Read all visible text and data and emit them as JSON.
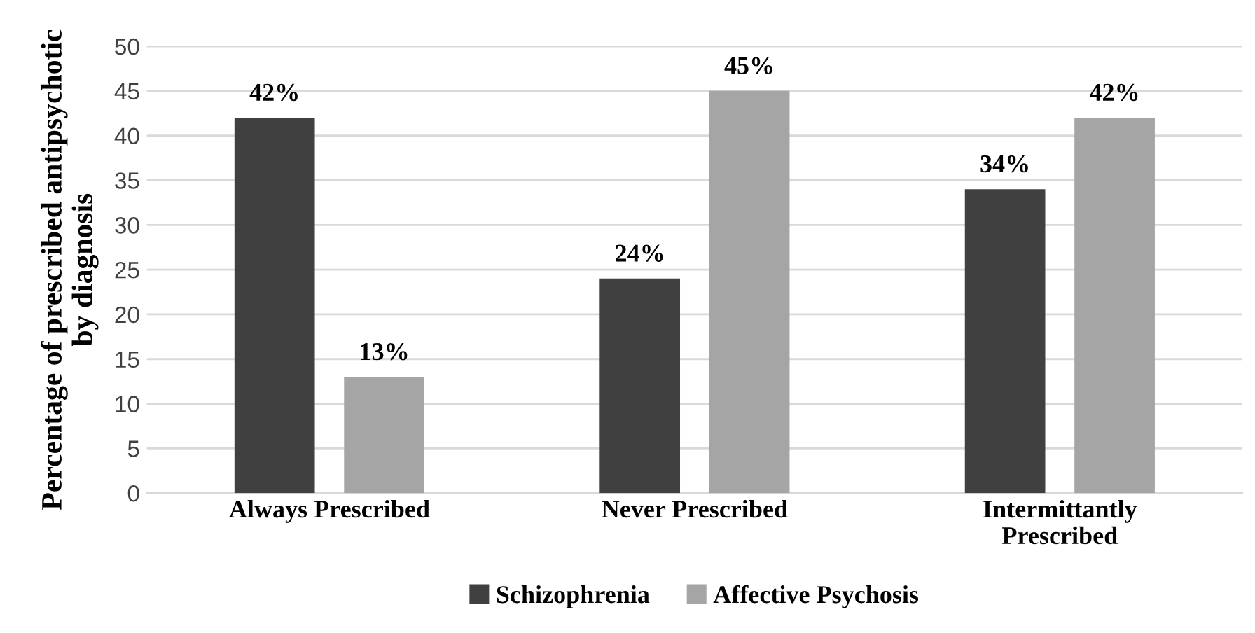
{
  "chart_data": {
    "type": "bar",
    "ylabel": "Percentage of prescribed antipsychotic\nby diagnosis",
    "categories": [
      "Always Prescribed",
      "Never Prescribed",
      "Intermittantly Prescribed"
    ],
    "series": [
      {
        "name": "Schizophrenia",
        "color": "#404040",
        "values": [
          42,
          24,
          34
        ],
        "value_labels": [
          "42%",
          "24%",
          "34%"
        ]
      },
      {
        "name": "Affective Psychosis",
        "color": "#a5a5a5",
        "values": [
          13,
          45,
          42
        ],
        "value_labels": [
          "13%",
          "45%",
          "42%"
        ]
      }
    ],
    "ylim": [
      0,
      50
    ],
    "yticks": [
      0,
      5,
      10,
      15,
      20,
      25,
      30,
      35,
      40,
      45,
      50
    ],
    "grid": "y",
    "legend": "bottom"
  }
}
